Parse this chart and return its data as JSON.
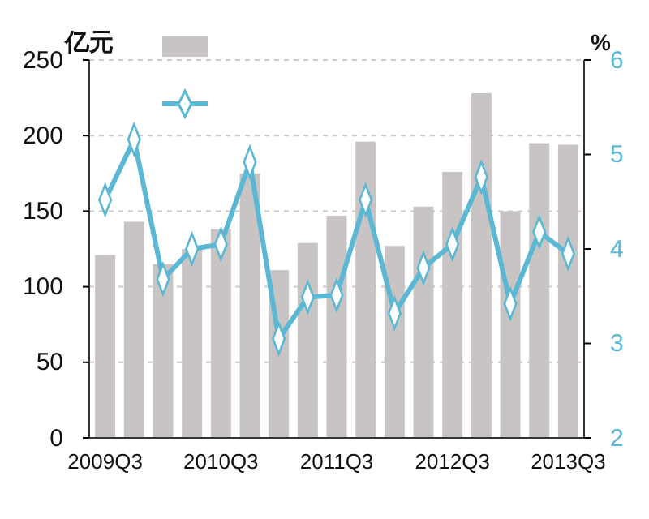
{
  "chart_data": {
    "type": "bar",
    "ylabel": "亿元",
    "y2label": "%",
    "categories": [
      "2009Q3",
      null,
      null,
      null,
      "2010Q3",
      null,
      null,
      null,
      "2011Q3",
      null,
      null,
      null,
      "2012Q3",
      null,
      null,
      null,
      "2013Q3"
    ],
    "series": [
      {
        "color": "#c9c4c4",
        "values": [
          121,
          143,
          115,
          125,
          138,
          175,
          111,
          129,
          147,
          196,
          127,
          153,
          176,
          228,
          150,
          195,
          194
        ]
      },
      {
        "type": "line",
        "axis": "y2",
        "color": "#5bb8d4",
        "marker": "diamond",
        "values": [
          4.52,
          5.16,
          3.68,
          4.0,
          4.05,
          4.92,
          3.05,
          3.49,
          3.51,
          4.52,
          3.32,
          3.8,
          4.05,
          4.76,
          3.42,
          4.18,
          3.95
        ]
      }
    ],
    "ylim": [
      0,
      250
    ],
    "yticks": [
      0,
      50,
      100,
      150,
      200,
      250
    ],
    "y2lim": [
      2,
      6
    ],
    "y2ticks": [
      2,
      3,
      4,
      5,
      6
    ],
    "grid": "y"
  }
}
